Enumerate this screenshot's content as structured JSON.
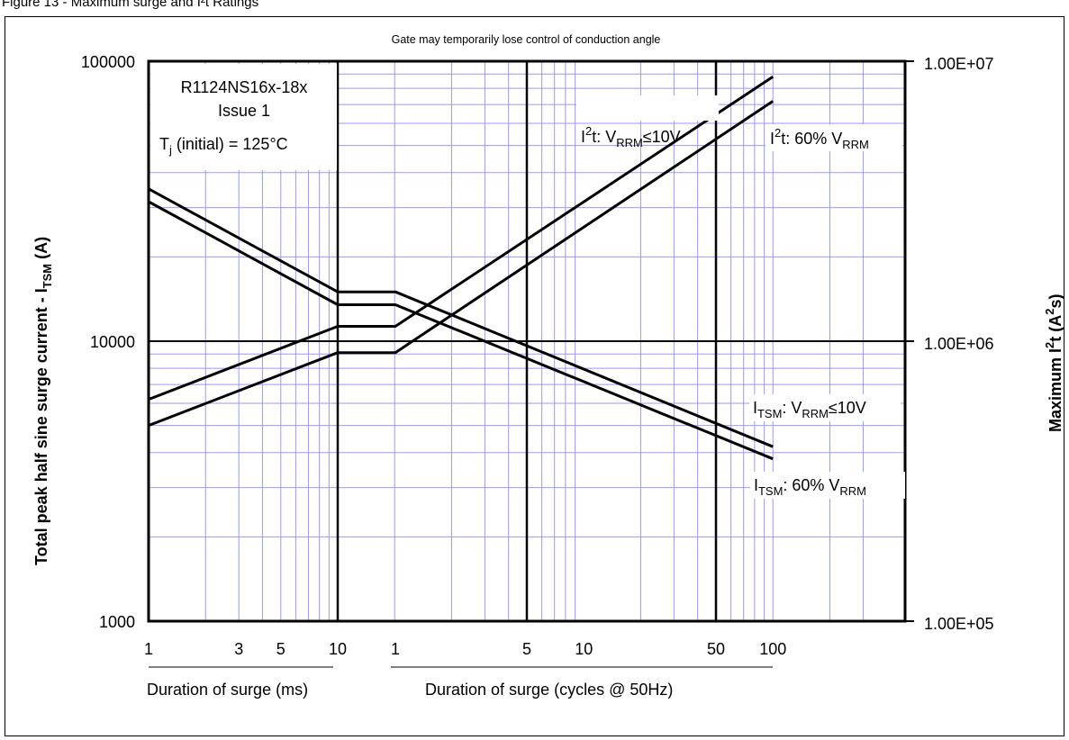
{
  "figure_caption": "Figure 13 - Maximum surge and I²t Ratings",
  "chart_data": {
    "type": "line",
    "title": "Gate may temporarily lose control of conduction angle",
    "y_scale": "log",
    "ylim": [
      1000,
      100000
    ],
    "y2lim": [
      100000,
      10000000
    ],
    "y_ticks": [
      "1000",
      "10000",
      "100000"
    ],
    "y2_ticks": [
      "1.00E+05",
      "1.00E+06",
      "1.00E+07"
    ],
    "ylabel": {
      "main": "Total peak half sine surge current - I",
      "sub": "TSM",
      "tail": " (A)"
    },
    "y2label": {
      "main": "Maximum I",
      "sup": "2",
      "mid": "t (A",
      "sup2": "2",
      "tail": "s)"
    },
    "x_segments": [
      {
        "label": "Duration of surge (ms)",
        "scale": "log",
        "range": [
          1,
          10
        ],
        "ticks": [
          "1",
          "3",
          "5",
          "10"
        ]
      },
      {
        "label": "Duration of surge (cycles @ 50Hz)",
        "scale": "log",
        "range": [
          0.5,
          100
        ],
        "ticks": [
          "1",
          "5",
          "10",
          "50",
          "100"
        ]
      }
    ],
    "info_box": {
      "part": "R1124NS16x-18x",
      "issue": "Issue 1",
      "tj_label": "T",
      "tj_sub": "j",
      "tj_rest": " (initial) = 125°C"
    },
    "series": [
      {
        "name": "ITSM: VRRM≤10V",
        "axis": "left",
        "points": [
          [
            1,
            "ms",
            35000
          ],
          [
            10,
            "ms",
            15000
          ],
          [
            1,
            "cyc",
            15000
          ],
          [
            100,
            "cyc",
            4200
          ]
        ]
      },
      {
        "name": "ITSM: 60% VRRM",
        "axis": "left",
        "points": [
          [
            1,
            "ms",
            31500
          ],
          [
            10,
            "ms",
            13500
          ],
          [
            1,
            "cyc",
            13500
          ],
          [
            100,
            "cyc",
            3800
          ]
        ]
      },
      {
        "name": "I2t: VRRM≤10V",
        "axis": "right",
        "points": [
          [
            1,
            "ms",
            620000
          ],
          [
            10,
            "ms",
            1130000
          ],
          [
            1,
            "cyc",
            1130000
          ],
          [
            100,
            "cyc",
            8800000
          ]
        ]
      },
      {
        "name": "I2t: 60% VRRM",
        "axis": "right",
        "points": [
          [
            1,
            "ms",
            500000
          ],
          [
            10,
            "ms",
            910000
          ],
          [
            1,
            "cyc",
            910000
          ],
          [
            100,
            "cyc",
            7200000
          ]
        ]
      }
    ],
    "labels": {
      "i2t_10v": {
        "a": "I",
        "sup": "2",
        "b": "t: V",
        "sub": "RRM",
        "c": "≤10V"
      },
      "i2t_60": {
        "a": "I",
        "sup": "2",
        "b": "t: 60% V",
        "sub": "RRM",
        "c": ""
      },
      "itsm_10v": {
        "a": "I",
        "sub1": "TSM",
        "b": ": V",
        "sub2": "RRM",
        "c": "≤10V"
      },
      "itsm_60": {
        "a": "I",
        "sub1": "TSM",
        "b": ": 60% V",
        "sub2": "RRM",
        "c": ""
      }
    },
    "grid": true,
    "grid_color": "#9999ff"
  }
}
